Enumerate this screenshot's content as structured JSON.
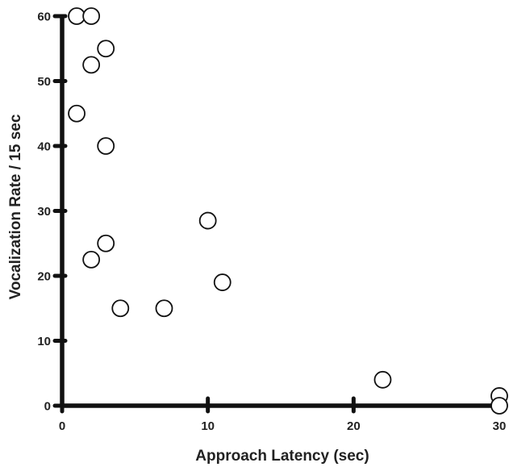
{
  "chart_data": {
    "type": "scatter",
    "title": "",
    "xlabel": "Approach Latency (sec)",
    "ylabel": "Vocalization Rate / 15 sec",
    "xlim": [
      0,
      30
    ],
    "ylim": [
      0,
      60
    ],
    "x_ticks": [
      "0",
      "10",
      "20",
      "30"
    ],
    "y_ticks": [
      "0",
      "10",
      "20",
      "30",
      "40",
      "50",
      "60"
    ],
    "grid": false,
    "legend": "none",
    "marker": "open-circle",
    "colors": {
      "marker_stroke": "#111111",
      "marker_fill": "#ffffff",
      "axis": "#111111",
      "text": "#222222"
    },
    "points": [
      {
        "x": 1,
        "y": 60
      },
      {
        "x": 2,
        "y": 60
      },
      {
        "x": 3,
        "y": 55
      },
      {
        "x": 2,
        "y": 52.5
      },
      {
        "x": 1,
        "y": 45
      },
      {
        "x": 3,
        "y": 40
      },
      {
        "x": 10,
        "y": 28.5
      },
      {
        "x": 3,
        "y": 25
      },
      {
        "x": 2,
        "y": 22.5
      },
      {
        "x": 11,
        "y": 19
      },
      {
        "x": 4,
        "y": 15
      },
      {
        "x": 7,
        "y": 15
      },
      {
        "x": 22,
        "y": 4
      },
      {
        "x": 30,
        "y": 1.5
      },
      {
        "x": 30,
        "y": 0
      }
    ]
  }
}
